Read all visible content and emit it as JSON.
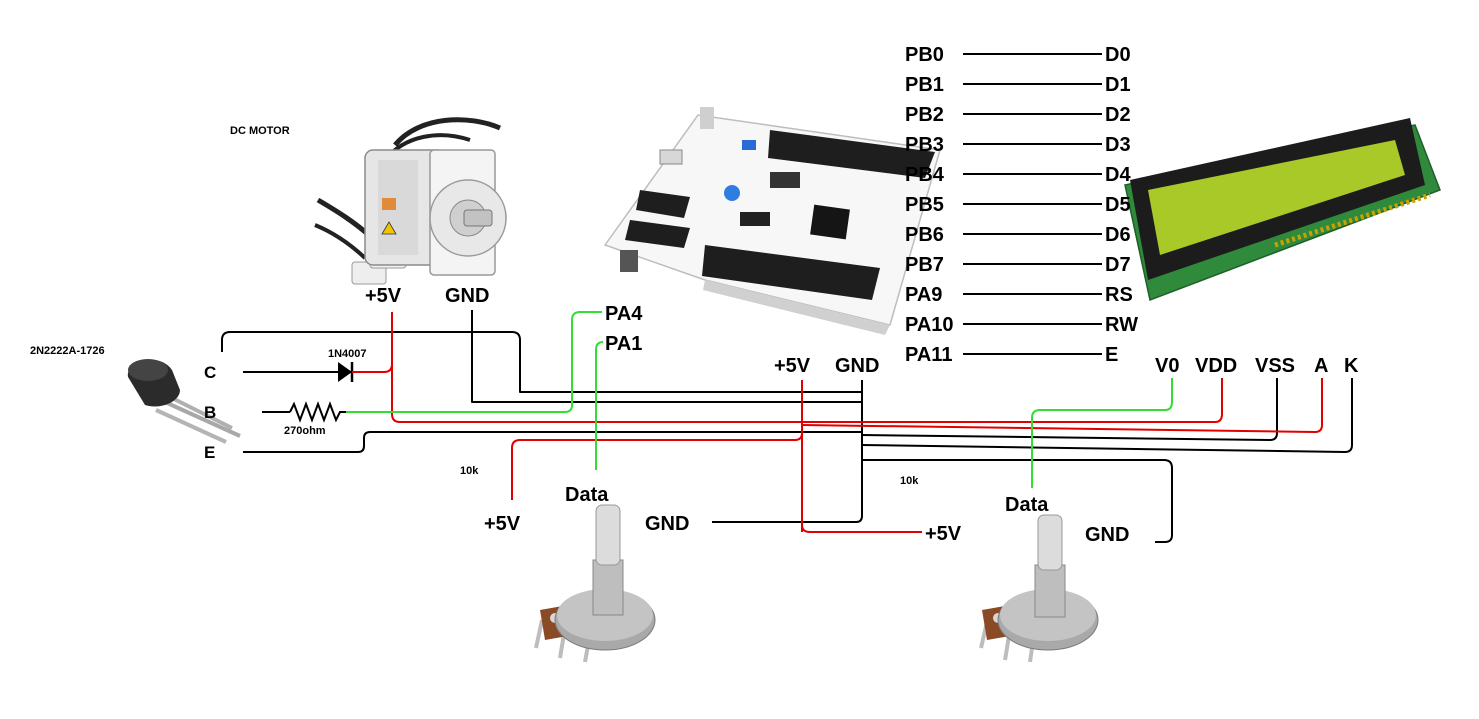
{
  "colors": {
    "wire_black": "#000000",
    "wire_red": "#e00000",
    "wire_green": "#33dd33",
    "highlight_red": "#ff0000"
  },
  "motor": {
    "title": "DC MOTOR",
    "plus": "+5V",
    "gnd": "GND"
  },
  "transistor": {
    "title": "2N2222A-1726",
    "c": "C",
    "b": "B",
    "e": "E"
  },
  "diode": {
    "label": "1N4007"
  },
  "resistor": {
    "label": "270ohm"
  },
  "board": {
    "pa4": "PA4",
    "pa1": "PA1",
    "plus": "+5V",
    "gnd": "GND"
  },
  "pins": [
    {
      "mcu": "PB0",
      "lcd": "D0"
    },
    {
      "mcu": "PB1",
      "lcd": "D1"
    },
    {
      "mcu": "PB2",
      "lcd": "D2"
    },
    {
      "mcu": "PB3",
      "lcd": "D3"
    },
    {
      "mcu": "PB4",
      "lcd": "D4"
    },
    {
      "mcu": "PB5",
      "lcd": "D5"
    },
    {
      "mcu": "PB6",
      "lcd": "D6"
    },
    {
      "mcu": "PB7",
      "lcd": "D7"
    },
    {
      "mcu": "PA9",
      "lcd": "RS"
    },
    {
      "mcu": "PA10",
      "lcd": "RW"
    },
    {
      "mcu": "PA11",
      "lcd": "E"
    }
  ],
  "lcd_power": {
    "v0": "V0",
    "vdd": "VDD",
    "vss": "VSS",
    "a": "A",
    "k": "K"
  },
  "pot1": {
    "value": "10k",
    "plus": "+5V",
    "data": "Data",
    "gnd": "GND"
  },
  "pot2": {
    "value": "10k",
    "plus": "+5V",
    "data": "Data",
    "gnd": "GND"
  }
}
